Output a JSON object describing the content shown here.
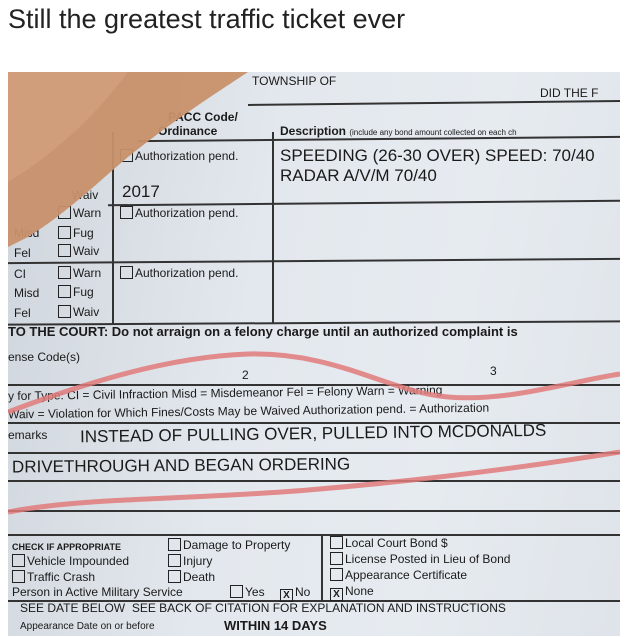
{
  "caption": "Still the greatest traffic ticket ever",
  "ticket": {
    "township": "TOWNSHIP OF",
    "did_the": "DID THE F",
    "code_header_1": "PACC Code/",
    "code_header_2": "Ordinance",
    "description_header": "Description",
    "description_note": "(include any bond amount collected on each ch",
    "auth_pend": "Authorization pend.",
    "offense_line1": "SPEEDING (26-30 OVER) SPEED: 70/40",
    "offense_line2": "RADAR A/V/M 70/40",
    "year": "2017",
    "warn": "Warn",
    "fug": "Fug",
    "waiv": "Waiv",
    "misd": "Misd",
    "fel": "Fel",
    "ci": "CI",
    "to_court_label": "TO THE COURT:",
    "to_court_text": "Do not arraign on a felony charge until an authorized complaint is",
    "offense_codes": "ense Code(s)",
    "num2": "2",
    "num3": "3",
    "key_line1": "y for Type:  CI = Civil Infraction   Misd = Misdemeanor   Fel = Felony   Warn = Warning",
    "key_line2": "Waiv = Violation for Which Fines/Costs May be Waived   Authorization pend. = Authorization",
    "remarks_label": "emarks",
    "remarks_line1": "INSTEAD OF PULLING OVER, PULLED INTO MCDONALDS",
    "remarks_line2": "DRIVETHROUGH AND BEGAN ORDERING",
    "check_header": "CHECK IF APPROPRIATE",
    "vehicle_impounded": "Vehicle Impounded",
    "traffic_crash": "Traffic Crash",
    "damage": "Damage to Property",
    "injury": "Injury",
    "death": "Death",
    "military": "Person in Active Military Service",
    "yes": "Yes",
    "no": "No",
    "local_bond": "Local Court Bond $",
    "license_posted": "License Posted in Lieu of Bond",
    "appearance_cert": "Appearance Certificate",
    "none": "None",
    "see_date": "SEE DATE BELOW",
    "see_back": "SEE BACK OF CITATION FOR EXPLANATION AND INSTRUCTIONS",
    "appearance_date": "Appearance Date on or before",
    "within": "WITHIN 14 DAYS",
    "checked_mark": "X"
  },
  "colors": {
    "red_marker": "#e07a7a",
    "thumb": "#c8906a",
    "paper": "#e3e8ee"
  }
}
